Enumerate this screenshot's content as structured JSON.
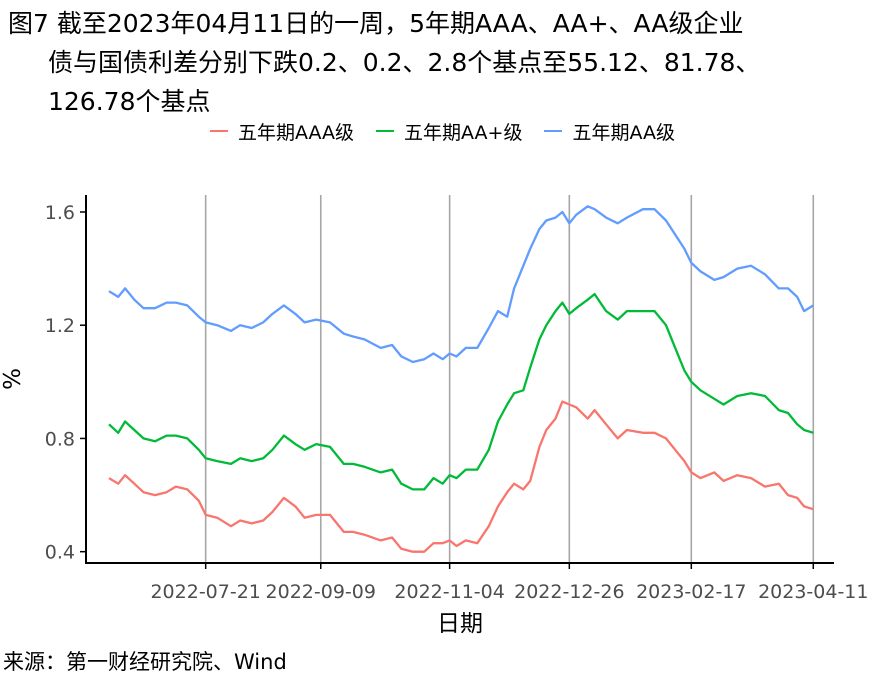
{
  "title": {
    "lines": [
      "图7  截至2023年04月11日的一周，5年期AAA、AA+、AA级企业",
      "债与国债利差分别下跌0.2、0.2、2.8个基点至55.12、81.78、",
      "126.78个基点"
    ]
  },
  "source": "来源：第一财经研究院、Wind",
  "chart_data": {
    "type": "line",
    "xlabel": "日期",
    "ylabel": "%",
    "x_tick_labels": [
      "2022-07-21",
      "2022-09-09",
      "2022-11-04",
      "2022-12-26",
      "2023-02-17",
      "2023-04-11"
    ],
    "x_range": [
      "2022-06-09",
      "2023-04-11"
    ],
    "ylim": [
      0.36,
      1.66
    ],
    "y_ticks": [
      0.4,
      0.8,
      1.2,
      1.6
    ],
    "y_tick_labels": [
      "0.4",
      "0.8",
      "1.2",
      "1.6"
    ],
    "grid": "vertical lines at x ticks",
    "legend_position": "top",
    "series": [
      {
        "name": "五年期AAA级",
        "color": "#F8766D",
        "points": [
          [
            "2022-06-09",
            0.66
          ],
          [
            "2022-06-13",
            0.64
          ],
          [
            "2022-06-16",
            0.67
          ],
          [
            "2022-06-20",
            0.64
          ],
          [
            "2022-06-24",
            0.61
          ],
          [
            "2022-06-29",
            0.6
          ],
          [
            "2022-07-04",
            0.61
          ],
          [
            "2022-07-08",
            0.63
          ],
          [
            "2022-07-13",
            0.62
          ],
          [
            "2022-07-18",
            0.58
          ],
          [
            "2022-07-21",
            0.53
          ],
          [
            "2022-07-26",
            0.52
          ],
          [
            "2022-08-01",
            0.49
          ],
          [
            "2022-08-05",
            0.51
          ],
          [
            "2022-08-10",
            0.5
          ],
          [
            "2022-08-15",
            0.51
          ],
          [
            "2022-08-19",
            0.54
          ],
          [
            "2022-08-24",
            0.59
          ],
          [
            "2022-08-29",
            0.56
          ],
          [
            "2022-09-02",
            0.52
          ],
          [
            "2022-09-07",
            0.53
          ],
          [
            "2022-09-13",
            0.53
          ],
          [
            "2022-09-19",
            0.47
          ],
          [
            "2022-09-23",
            0.47
          ],
          [
            "2022-09-28",
            0.46
          ],
          [
            "2022-10-05",
            0.44
          ],
          [
            "2022-10-10",
            0.45
          ],
          [
            "2022-10-14",
            0.41
          ],
          [
            "2022-10-19",
            0.4
          ],
          [
            "2022-10-24",
            0.4
          ],
          [
            "2022-10-28",
            0.43
          ],
          [
            "2022-11-01",
            0.43
          ],
          [
            "2022-11-04",
            0.44
          ],
          [
            "2022-11-07",
            0.42
          ],
          [
            "2022-11-11",
            0.44
          ],
          [
            "2022-11-16",
            0.43
          ],
          [
            "2022-11-21",
            0.49
          ],
          [
            "2022-11-25",
            0.56
          ],
          [
            "2022-11-29",
            0.61
          ],
          [
            "2022-12-02",
            0.64
          ],
          [
            "2022-12-06",
            0.62
          ],
          [
            "2022-12-09",
            0.65
          ],
          [
            "2022-12-13",
            0.77
          ],
          [
            "2022-12-16",
            0.83
          ],
          [
            "2022-12-20",
            0.87
          ],
          [
            "2022-12-23",
            0.93
          ],
          [
            "2022-12-26",
            0.92
          ],
          [
            "2022-12-29",
            0.91
          ],
          [
            "2023-01-03",
            0.87
          ],
          [
            "2023-01-06",
            0.9
          ],
          [
            "2023-01-11",
            0.85
          ],
          [
            "2023-01-16",
            0.8
          ],
          [
            "2023-01-20",
            0.83
          ],
          [
            "2023-01-27",
            0.82
          ],
          [
            "2023-02-01",
            0.82
          ],
          [
            "2023-02-06",
            0.8
          ],
          [
            "2023-02-10",
            0.76
          ],
          [
            "2023-02-14",
            0.72
          ],
          [
            "2023-02-17",
            0.68
          ],
          [
            "2023-02-21",
            0.66
          ],
          [
            "2023-02-27",
            0.68
          ],
          [
            "2023-03-03",
            0.65
          ],
          [
            "2023-03-09",
            0.67
          ],
          [
            "2023-03-15",
            0.66
          ],
          [
            "2023-03-21",
            0.63
          ],
          [
            "2023-03-27",
            0.64
          ],
          [
            "2023-03-31",
            0.6
          ],
          [
            "2023-04-04",
            0.59
          ],
          [
            "2023-04-07",
            0.56
          ],
          [
            "2023-04-11",
            0.55
          ]
        ]
      },
      {
        "name": "五年期AA+级",
        "color": "#00BA38",
        "points": [
          [
            "2022-06-09",
            0.85
          ],
          [
            "2022-06-13",
            0.82
          ],
          [
            "2022-06-16",
            0.86
          ],
          [
            "2022-06-20",
            0.83
          ],
          [
            "2022-06-24",
            0.8
          ],
          [
            "2022-06-29",
            0.79
          ],
          [
            "2022-07-04",
            0.81
          ],
          [
            "2022-07-08",
            0.81
          ],
          [
            "2022-07-13",
            0.8
          ],
          [
            "2022-07-18",
            0.76
          ],
          [
            "2022-07-21",
            0.73
          ],
          [
            "2022-07-26",
            0.72
          ],
          [
            "2022-08-01",
            0.71
          ],
          [
            "2022-08-05",
            0.73
          ],
          [
            "2022-08-10",
            0.72
          ],
          [
            "2022-08-15",
            0.73
          ],
          [
            "2022-08-19",
            0.76
          ],
          [
            "2022-08-24",
            0.81
          ],
          [
            "2022-08-29",
            0.78
          ],
          [
            "2022-09-02",
            0.76
          ],
          [
            "2022-09-07",
            0.78
          ],
          [
            "2022-09-13",
            0.77
          ],
          [
            "2022-09-19",
            0.71
          ],
          [
            "2022-09-23",
            0.71
          ],
          [
            "2022-09-28",
            0.7
          ],
          [
            "2022-10-05",
            0.68
          ],
          [
            "2022-10-10",
            0.69
          ],
          [
            "2022-10-14",
            0.64
          ],
          [
            "2022-10-19",
            0.62
          ],
          [
            "2022-10-24",
            0.62
          ],
          [
            "2022-10-28",
            0.66
          ],
          [
            "2022-11-01",
            0.64
          ],
          [
            "2022-11-04",
            0.67
          ],
          [
            "2022-11-07",
            0.66
          ],
          [
            "2022-11-11",
            0.69
          ],
          [
            "2022-11-16",
            0.69
          ],
          [
            "2022-11-21",
            0.76
          ],
          [
            "2022-11-25",
            0.86
          ],
          [
            "2022-11-29",
            0.92
          ],
          [
            "2022-12-02",
            0.96
          ],
          [
            "2022-12-06",
            0.97
          ],
          [
            "2022-12-09",
            1.05
          ],
          [
            "2022-12-13",
            1.15
          ],
          [
            "2022-12-16",
            1.2
          ],
          [
            "2022-12-20",
            1.25
          ],
          [
            "2022-12-23",
            1.28
          ],
          [
            "2022-12-26",
            1.24
          ],
          [
            "2022-12-29",
            1.26
          ],
          [
            "2023-01-03",
            1.29
          ],
          [
            "2023-01-06",
            1.31
          ],
          [
            "2023-01-11",
            1.25
          ],
          [
            "2023-01-16",
            1.22
          ],
          [
            "2023-01-20",
            1.25
          ],
          [
            "2023-01-27",
            1.25
          ],
          [
            "2023-02-01",
            1.25
          ],
          [
            "2023-02-06",
            1.2
          ],
          [
            "2023-02-10",
            1.12
          ],
          [
            "2023-02-14",
            1.04
          ],
          [
            "2023-02-17",
            1.0
          ],
          [
            "2023-02-21",
            0.97
          ],
          [
            "2023-02-27",
            0.94
          ],
          [
            "2023-03-03",
            0.92
          ],
          [
            "2023-03-09",
            0.95
          ],
          [
            "2023-03-15",
            0.96
          ],
          [
            "2023-03-21",
            0.95
          ],
          [
            "2023-03-27",
            0.9
          ],
          [
            "2023-03-31",
            0.89
          ],
          [
            "2023-04-04",
            0.85
          ],
          [
            "2023-04-07",
            0.83
          ],
          [
            "2023-04-11",
            0.82
          ]
        ]
      },
      {
        "name": "五年期AA级",
        "color": "#619CFF",
        "points": [
          [
            "2022-06-09",
            1.32
          ],
          [
            "2022-06-13",
            1.3
          ],
          [
            "2022-06-16",
            1.33
          ],
          [
            "2022-06-20",
            1.29
          ],
          [
            "2022-06-24",
            1.26
          ],
          [
            "2022-06-29",
            1.26
          ],
          [
            "2022-07-04",
            1.28
          ],
          [
            "2022-07-08",
            1.28
          ],
          [
            "2022-07-13",
            1.27
          ],
          [
            "2022-07-18",
            1.23
          ],
          [
            "2022-07-21",
            1.21
          ],
          [
            "2022-07-26",
            1.2
          ],
          [
            "2022-08-01",
            1.18
          ],
          [
            "2022-08-05",
            1.2
          ],
          [
            "2022-08-10",
            1.19
          ],
          [
            "2022-08-15",
            1.21
          ],
          [
            "2022-08-19",
            1.24
          ],
          [
            "2022-08-24",
            1.27
          ],
          [
            "2022-08-29",
            1.24
          ],
          [
            "2022-09-02",
            1.21
          ],
          [
            "2022-09-07",
            1.22
          ],
          [
            "2022-09-13",
            1.21
          ],
          [
            "2022-09-19",
            1.17
          ],
          [
            "2022-09-23",
            1.16
          ],
          [
            "2022-09-28",
            1.15
          ],
          [
            "2022-10-05",
            1.12
          ],
          [
            "2022-10-10",
            1.13
          ],
          [
            "2022-10-14",
            1.09
          ],
          [
            "2022-10-19",
            1.07
          ],
          [
            "2022-10-24",
            1.08
          ],
          [
            "2022-10-28",
            1.1
          ],
          [
            "2022-11-01",
            1.08
          ],
          [
            "2022-11-04",
            1.1
          ],
          [
            "2022-11-07",
            1.09
          ],
          [
            "2022-11-11",
            1.12
          ],
          [
            "2022-11-16",
            1.12
          ],
          [
            "2022-11-21",
            1.19
          ],
          [
            "2022-11-25",
            1.25
          ],
          [
            "2022-11-29",
            1.23
          ],
          [
            "2022-12-02",
            1.33
          ],
          [
            "2022-12-06",
            1.41
          ],
          [
            "2022-12-09",
            1.47
          ],
          [
            "2022-12-13",
            1.54
          ],
          [
            "2022-12-16",
            1.57
          ],
          [
            "2022-12-20",
            1.58
          ],
          [
            "2022-12-23",
            1.6
          ],
          [
            "2022-12-26",
            1.56
          ],
          [
            "2022-12-29",
            1.59
          ],
          [
            "2023-01-03",
            1.62
          ],
          [
            "2023-01-06",
            1.61
          ],
          [
            "2023-01-11",
            1.58
          ],
          [
            "2023-01-16",
            1.56
          ],
          [
            "2023-01-20",
            1.58
          ],
          [
            "2023-01-27",
            1.61
          ],
          [
            "2023-02-01",
            1.61
          ],
          [
            "2023-02-06",
            1.57
          ],
          [
            "2023-02-10",
            1.52
          ],
          [
            "2023-02-14",
            1.47
          ],
          [
            "2023-02-17",
            1.42
          ],
          [
            "2023-02-21",
            1.39
          ],
          [
            "2023-02-27",
            1.36
          ],
          [
            "2023-03-03",
            1.37
          ],
          [
            "2023-03-09",
            1.4
          ],
          [
            "2023-03-15",
            1.41
          ],
          [
            "2023-03-21",
            1.38
          ],
          [
            "2023-03-27",
            1.33
          ],
          [
            "2023-03-31",
            1.33
          ],
          [
            "2023-04-04",
            1.3
          ],
          [
            "2023-04-07",
            1.25
          ],
          [
            "2023-04-11",
            1.27
          ]
        ]
      }
    ]
  }
}
